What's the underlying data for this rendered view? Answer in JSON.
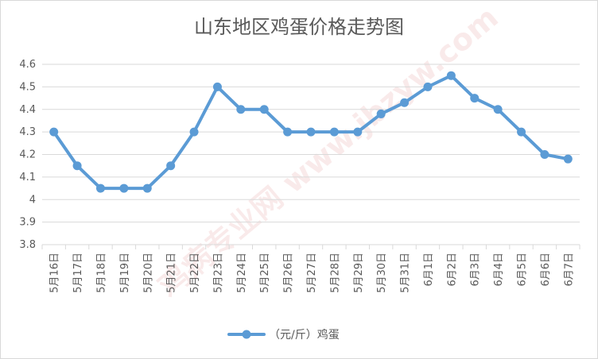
{
  "chart_data": {
    "type": "line",
    "title": "山东地区鸡蛋价格走势图",
    "categories": [
      "5月16日",
      "5月17日",
      "5月18日",
      "5月19日",
      "5月20日",
      "5月21日",
      "5月22日",
      "5月23日",
      "5月24日",
      "5月25日",
      "5月26日",
      "5月27日",
      "5月28日",
      "5月29日",
      "5月30日",
      "5月31日",
      "6月1日",
      "6月2日",
      "6月3日",
      "6月4日",
      "6月5日",
      "6月6日",
      "6月7日"
    ],
    "series": [
      {
        "name": "（元/斤）鸡蛋",
        "values": [
          4.3,
          4.15,
          4.05,
          4.05,
          4.05,
          4.15,
          4.3,
          4.5,
          4.4,
          4.4,
          4.3,
          4.3,
          4.3,
          4.3,
          4.38,
          4.43,
          4.5,
          4.55,
          4.45,
          4.4,
          4.3,
          4.2,
          4.18
        ],
        "color": "#5b9bd5"
      }
    ],
    "ylim": [
      3.8,
      4.6
    ],
    "yticks": [
      "3.8",
      "3.9",
      "4",
      "4.1",
      "4.2",
      "4.3",
      "4.4",
      "4.5",
      "4.6"
    ],
    "xlabel": "",
    "ylabel": "",
    "grid": true,
    "legend_position": "bottom",
    "watermark": "鸡病专业网 www.jbzyw.com"
  }
}
